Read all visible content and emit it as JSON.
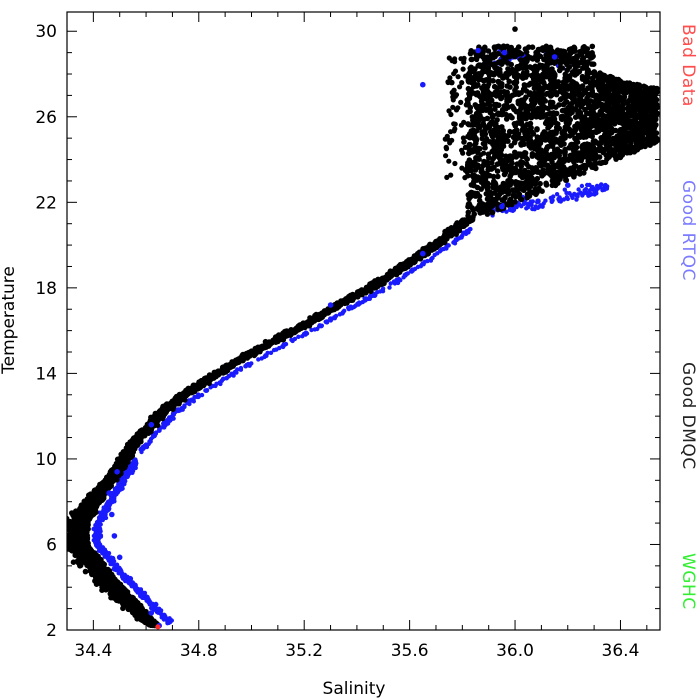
{
  "chart_data": {
    "type": "scatter",
    "xlabel": "Salinity",
    "ylabel": "Temperature",
    "xlim": [
      34.3,
      36.55
    ],
    "ylim": [
      2,
      30.9
    ],
    "x_ticks": [
      "34.4",
      "34.8",
      "35.2",
      "35.6",
      "36.0",
      "36.4"
    ],
    "y_ticks": [
      "2",
      "6",
      "10",
      "14",
      "18",
      "22",
      "26",
      "30"
    ],
    "grid": false,
    "legend_placement": "right",
    "series": [
      {
        "name": "Good DMQC",
        "color": "#000000",
        "points": [
          [
            34.64,
            2.2
          ],
          [
            34.58,
            3.0
          ],
          [
            34.52,
            3.8
          ],
          [
            34.46,
            4.6
          ],
          [
            34.41,
            5.4
          ],
          [
            34.36,
            5.9
          ],
          [
            34.34,
            6.2
          ],
          [
            34.38,
            7.2
          ],
          [
            34.43,
            8.2
          ],
          [
            34.48,
            9.2
          ],
          [
            34.52,
            10.2
          ],
          [
            34.58,
            11.2
          ],
          [
            34.65,
            12.2
          ],
          [
            34.74,
            13.0
          ],
          [
            34.84,
            13.8
          ],
          [
            34.95,
            14.6
          ],
          [
            35.07,
            15.4
          ],
          [
            35.19,
            16.2
          ],
          [
            35.31,
            17.0
          ],
          [
            35.43,
            17.9
          ],
          [
            35.55,
            18.8
          ],
          [
            35.66,
            19.7
          ],
          [
            35.76,
            20.5
          ],
          [
            35.84,
            21.3
          ],
          [
            35.9,
            22.3
          ],
          [
            35.96,
            23.3
          ],
          [
            36.04,
            24.3
          ],
          [
            36.12,
            25.2
          ],
          [
            36.2,
            25.8
          ],
          [
            36.3,
            26.4
          ],
          [
            36.4,
            26.9
          ],
          [
            36.5,
            26.4
          ],
          [
            36.0,
            30.1
          ],
          [
            36.08,
            29.0
          ],
          [
            35.9,
            28.6
          ],
          [
            35.76,
            27.6
          ]
        ]
      },
      {
        "name": "Good RTQC",
        "color": "#1a1aff",
        "points": [
          [
            34.65,
            2.2
          ],
          [
            34.62,
            2.8
          ],
          [
            34.58,
            3.6
          ],
          [
            34.54,
            4.4
          ],
          [
            34.5,
            5.4
          ],
          [
            34.48,
            6.4
          ],
          [
            34.47,
            7.4
          ],
          [
            34.46,
            8.4
          ],
          [
            34.49,
            9.4
          ],
          [
            34.62,
            11.6
          ],
          [
            35.3,
            17.2
          ],
          [
            35.65,
            19.6
          ],
          [
            35.95,
            21.8
          ],
          [
            36.2,
            22.8
          ],
          [
            35.86,
            29.1
          ],
          [
            35.65,
            27.5
          ],
          [
            36.15,
            28.8
          ],
          [
            35.96,
            29.0
          ]
        ]
      },
      {
        "name": "Bad Data",
        "color": "#ff2a2a",
        "points": [
          [
            34.645,
            2.15
          ]
        ]
      }
    ],
    "legend": [
      {
        "label": "Bad Data",
        "color": "#ff4d4d"
      },
      {
        "label": "Good RTQC",
        "color": "#7b7bff"
      },
      {
        "label": "Good DMQC",
        "color": "#222222"
      },
      {
        "label": "WGHC",
        "color": "#33ee33"
      }
    ]
  }
}
